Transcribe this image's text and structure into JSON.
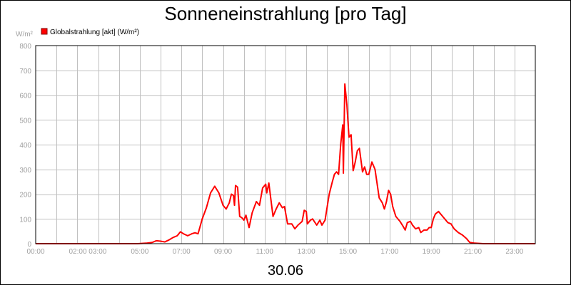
{
  "chart_data": {
    "type": "line",
    "title": "Sonneneinstrahlung [pro Tag]",
    "ylabel": "W/m²",
    "xlabel": "30.06",
    "ylim": [
      0,
      800
    ],
    "xlim": [
      0,
      24
    ],
    "y_ticks": [
      "0",
      "100",
      "200",
      "300",
      "400",
      "500",
      "600",
      "700",
      "800"
    ],
    "x_ticks": [
      {
        "t": 0,
        "label": "00:00"
      },
      {
        "t": 2.5,
        "label": "02:00 03:00"
      },
      {
        "t": 5,
        "label": "05:00"
      },
      {
        "t": 7,
        "label": "07:00"
      },
      {
        "t": 9,
        "label": "09:00"
      },
      {
        "t": 11,
        "label": "11:00"
      },
      {
        "t": 13,
        "label": "13:00"
      },
      {
        "t": 15,
        "label": "15:00"
      },
      {
        "t": 17,
        "label": "17:00"
      },
      {
        "t": 19,
        "label": "19:00"
      },
      {
        "t": 21,
        "label": "21:00"
      },
      {
        "t": 23,
        "label": "23:00"
      }
    ],
    "grid": true,
    "legend_position": "top-left",
    "series": [
      {
        "name": "Globalstrahlung [akt] (W/m²)",
        "color": "#ff0000",
        "points": [
          [
            0.0,
            0
          ],
          [
            4.9,
            0
          ],
          [
            5.3,
            2
          ],
          [
            5.6,
            5
          ],
          [
            5.8,
            12
          ],
          [
            6.0,
            10
          ],
          [
            6.2,
            7
          ],
          [
            6.4,
            15
          ],
          [
            6.6,
            25
          ],
          [
            6.8,
            32
          ],
          [
            6.95,
            48
          ],
          [
            7.1,
            40
          ],
          [
            7.3,
            32
          ],
          [
            7.5,
            40
          ],
          [
            7.65,
            44
          ],
          [
            7.8,
            40
          ],
          [
            8.0,
            100
          ],
          [
            8.2,
            145
          ],
          [
            8.4,
            205
          ],
          [
            8.6,
            232
          ],
          [
            8.8,
            205
          ],
          [
            9.0,
            155
          ],
          [
            9.15,
            140
          ],
          [
            9.3,
            165
          ],
          [
            9.4,
            200
          ],
          [
            9.5,
            195
          ],
          [
            9.55,
            155
          ],
          [
            9.6,
            235
          ],
          [
            9.7,
            228
          ],
          [
            9.8,
            110
          ],
          [
            9.9,
            105
          ],
          [
            10.0,
            95
          ],
          [
            10.1,
            115
          ],
          [
            10.25,
            65
          ],
          [
            10.4,
            125
          ],
          [
            10.6,
            170
          ],
          [
            10.75,
            155
          ],
          [
            10.9,
            225
          ],
          [
            11.05,
            240
          ],
          [
            11.1,
            205
          ],
          [
            11.2,
            245
          ],
          [
            11.4,
            110
          ],
          [
            11.55,
            140
          ],
          [
            11.7,
            165
          ],
          [
            11.85,
            145
          ],
          [
            11.95,
            150
          ],
          [
            12.1,
            80
          ],
          [
            12.3,
            80
          ],
          [
            12.45,
            60
          ],
          [
            12.6,
            75
          ],
          [
            12.8,
            90
          ],
          [
            12.9,
            135
          ],
          [
            13.0,
            130
          ],
          [
            13.05,
            80
          ],
          [
            13.2,
            95
          ],
          [
            13.3,
            100
          ],
          [
            13.5,
            75
          ],
          [
            13.65,
            95
          ],
          [
            13.75,
            75
          ],
          [
            13.9,
            95
          ],
          [
            14.1,
            200
          ],
          [
            14.25,
            250
          ],
          [
            14.35,
            280
          ],
          [
            14.45,
            290
          ],
          [
            14.55,
            280
          ],
          [
            14.65,
            400
          ],
          [
            14.75,
            480
          ],
          [
            14.78,
            285
          ],
          [
            14.85,
            645
          ],
          [
            14.95,
            560
          ],
          [
            15.05,
            430
          ],
          [
            15.15,
            440
          ],
          [
            15.25,
            295
          ],
          [
            15.35,
            330
          ],
          [
            15.45,
            375
          ],
          [
            15.55,
            385
          ],
          [
            15.7,
            290
          ],
          [
            15.8,
            310
          ],
          [
            15.9,
            280
          ],
          [
            16.0,
            280
          ],
          [
            16.15,
            330
          ],
          [
            16.3,
            300
          ],
          [
            16.5,
            185
          ],
          [
            16.65,
            165
          ],
          [
            16.75,
            140
          ],
          [
            16.85,
            170
          ],
          [
            16.95,
            215
          ],
          [
            17.05,
            200
          ],
          [
            17.15,
            150
          ],
          [
            17.3,
            110
          ],
          [
            17.5,
            90
          ],
          [
            17.65,
            70
          ],
          [
            17.75,
            55
          ],
          [
            17.85,
            85
          ],
          [
            18.0,
            90
          ],
          [
            18.1,
            75
          ],
          [
            18.25,
            60
          ],
          [
            18.4,
            65
          ],
          [
            18.5,
            45
          ],
          [
            18.65,
            55
          ],
          [
            18.8,
            55
          ],
          [
            18.9,
            65
          ],
          [
            19.0,
            65
          ],
          [
            19.1,
            100
          ],
          [
            19.2,
            120
          ],
          [
            19.35,
            130
          ],
          [
            19.5,
            115
          ],
          [
            19.65,
            100
          ],
          [
            19.8,
            85
          ],
          [
            19.95,
            80
          ],
          [
            20.1,
            60
          ],
          [
            20.3,
            45
          ],
          [
            20.5,
            35
          ],
          [
            20.7,
            20
          ],
          [
            20.85,
            5
          ],
          [
            21.1,
            2
          ],
          [
            21.5,
            0
          ],
          [
            24.0,
            0
          ]
        ]
      }
    ]
  }
}
